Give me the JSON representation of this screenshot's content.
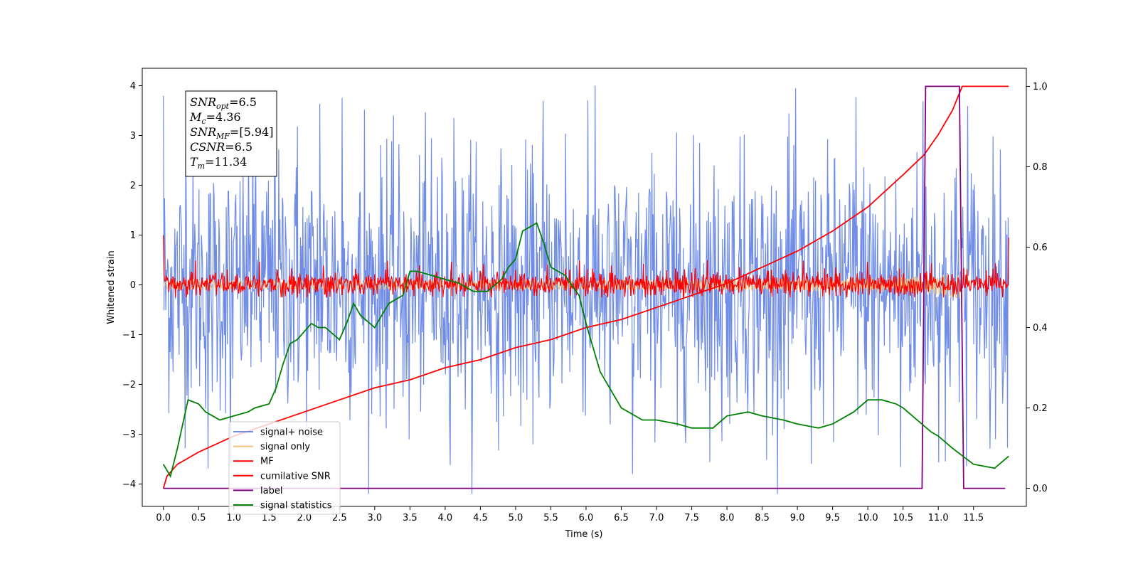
{
  "chart_data": {
    "type": "line",
    "xlabel": "Time (s)",
    "ylabel": "Whitened strain",
    "y2label": "",
    "xlim": [
      -0.3,
      12.25
    ],
    "ylim": [
      -4.45,
      4.35
    ],
    "y2lim": [
      -0.045,
      1.045
    ],
    "x_ticks": [
      0.0,
      0.5,
      1.0,
      1.5,
      2.0,
      2.5,
      3.0,
      3.5,
      4.0,
      4.5,
      5.0,
      5.5,
      6.0,
      6.5,
      7.0,
      7.5,
      8.0,
      8.5,
      9.0,
      9.5,
      10.0,
      10.5,
      11.0,
      11.5
    ],
    "x_tick_labels": [
      "0.0",
      "0.5",
      "1.0",
      "1.5",
      "2.0",
      "2.5",
      "3.0",
      "3.5",
      "4.0",
      "4.5",
      "5.0",
      "5.5",
      "6.0",
      "6.5",
      "7.0",
      "7.5",
      "8.0",
      "8.5",
      "9.0",
      "9.5",
      "10.0",
      "10.5",
      "11.0",
      "11.5"
    ],
    "y_ticks": [
      -4,
      -3,
      -2,
      -1,
      0,
      1,
      2,
      3,
      4
    ],
    "y_tick_labels": [
      "−4",
      "−3",
      "−2",
      "−1",
      "0",
      "1",
      "2",
      "3",
      "4"
    ],
    "y2_ticks": [
      0.0,
      0.2,
      0.4,
      0.6,
      0.8,
      1.0
    ],
    "y2_tick_labels": [
      "0.0",
      "0.2",
      "0.4",
      "0.6",
      "0.8",
      "1.0"
    ],
    "legend_position": "lower-left",
    "series": [
      {
        "name": "signal+ noise",
        "axis": "left",
        "color": "#6f8ce6",
        "kind": "noise",
        "x_range": [
          0.0,
          12.0
        ],
        "envelope": [
          -3.0,
          3.0
        ],
        "approx_samples": 1400
      },
      {
        "name": "signal only",
        "axis": "left",
        "color": "#f2c27a",
        "kind": "chirp",
        "x_range": [
          0.0,
          11.34
        ],
        "peak_time": 11.34,
        "peak_amplitude": 0.45
      },
      {
        "name": "MF",
        "axis": "left",
        "color": "#ff0000",
        "kind": "noise",
        "x_range": [
          0.0,
          12.0
        ],
        "envelope": [
          -0.25,
          0.5
        ],
        "approx_samples": 1400
      },
      {
        "name": "cumilative SNR",
        "axis": "right",
        "color": "#ff0000",
        "x": [
          0.0,
          0.05,
          0.2,
          0.5,
          1.0,
          1.5,
          2.0,
          2.5,
          3.0,
          3.5,
          4.0,
          4.5,
          5.0,
          5.5,
          6.0,
          6.5,
          7.0,
          7.5,
          8.0,
          8.5,
          9.0,
          9.5,
          10.0,
          10.5,
          10.8,
          11.0,
          11.2,
          11.34,
          12.0
        ],
        "y": [
          0.0,
          0.03,
          0.06,
          0.09,
          0.13,
          0.16,
          0.19,
          0.22,
          0.25,
          0.27,
          0.3,
          0.32,
          0.35,
          0.37,
          0.4,
          0.42,
          0.45,
          0.48,
          0.51,
          0.55,
          0.59,
          0.64,
          0.7,
          0.78,
          0.83,
          0.88,
          0.94,
          1.0,
          1.0
        ]
      },
      {
        "name": "label",
        "axis": "right",
        "color": "#800080",
        "x": [
          0.0,
          10.77,
          10.82,
          11.3,
          11.36,
          11.95
        ],
        "y": [
          0.0,
          0.0,
          1.0,
          1.0,
          0.0,
          0.0
        ]
      },
      {
        "name": "signal statistics",
        "axis": "right",
        "color": "#008000",
        "x": [
          0.0,
          0.1,
          0.2,
          0.35,
          0.5,
          0.6,
          0.7,
          0.8,
          1.0,
          1.2,
          1.3,
          1.5,
          1.6,
          1.7,
          1.8,
          1.9,
          2.0,
          2.1,
          2.2,
          2.3,
          2.5,
          2.6,
          2.7,
          2.8,
          3.0,
          3.2,
          3.4,
          3.5,
          3.6,
          3.8,
          4.0,
          4.2,
          4.4,
          4.6,
          4.8,
          4.9,
          5.0,
          5.1,
          5.2,
          5.3,
          5.4,
          5.5,
          5.7,
          5.9,
          6.0,
          6.2,
          6.5,
          6.8,
          7.0,
          7.3,
          7.5,
          7.8,
          8.0,
          8.3,
          8.5,
          8.8,
          9.0,
          9.3,
          9.5,
          9.8,
          10.0,
          10.2,
          10.4,
          10.5,
          10.7,
          10.9,
          11.0,
          11.2,
          11.5,
          11.8,
          12.0
        ],
        "y": [
          0.06,
          0.03,
          0.1,
          0.22,
          0.21,
          0.19,
          0.18,
          0.17,
          0.18,
          0.19,
          0.2,
          0.21,
          0.25,
          0.31,
          0.36,
          0.37,
          0.39,
          0.41,
          0.4,
          0.4,
          0.37,
          0.41,
          0.46,
          0.43,
          0.4,
          0.46,
          0.48,
          0.54,
          0.54,
          0.53,
          0.52,
          0.51,
          0.49,
          0.49,
          0.52,
          0.55,
          0.57,
          0.64,
          0.65,
          0.66,
          0.61,
          0.55,
          0.53,
          0.48,
          0.41,
          0.29,
          0.2,
          0.17,
          0.17,
          0.16,
          0.15,
          0.15,
          0.18,
          0.19,
          0.18,
          0.17,
          0.16,
          0.15,
          0.16,
          0.19,
          0.22,
          0.22,
          0.21,
          0.2,
          0.17,
          0.14,
          0.13,
          0.1,
          0.06,
          0.05,
          0.08
        ]
      }
    ],
    "info_box": [
      {
        "label": "SNR",
        "sub": "opt",
        "value": "=6.5"
      },
      {
        "label": "M",
        "sub": "c",
        "value": "=4.36"
      },
      {
        "label": "SNR",
        "sub": "MF",
        "value": "=[5.94]"
      },
      {
        "label": "CSNR",
        "sub": "",
        "value": "=6.5"
      },
      {
        "label": "T",
        "sub": "m",
        "value": "=11.34"
      }
    ]
  }
}
